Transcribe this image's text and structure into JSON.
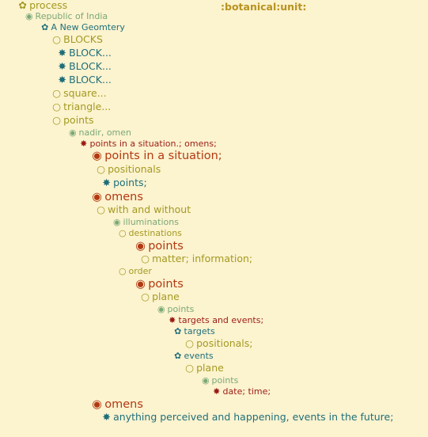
{
  "header": {
    "label": ":botanical:unit:"
  },
  "icons": {
    "flower-icon": "✿",
    "ring-icon": "◉",
    "circle-icon": "○",
    "asterisk-icon": "✸"
  },
  "colors": {
    "background": "#fcf3cf",
    "olive": "#a39a22",
    "sage": "#7aa877",
    "teal": "#1f6f7a",
    "red": "#9b1c14",
    "rust": "#b23a12",
    "header": "#b89320"
  },
  "tree": [
    {
      "label": "process",
      "marker": "flower-icon",
      "tone": "olive"
    },
    {
      "label": "Republic of India",
      "marker": "ring-icon",
      "tone": "sage"
    },
    {
      "label": "A New Geomtery",
      "marker": "flower-icon",
      "tone": "teal"
    },
    {
      "label": "BLOCKS",
      "marker": "circle-icon",
      "tone": "olive"
    },
    {
      "label": "BLOCK...",
      "marker": "asterisk-icon",
      "tone": "teal"
    },
    {
      "label": "BLOCK...",
      "marker": "asterisk-icon",
      "tone": "teal"
    },
    {
      "label": "BLOCK...",
      "marker": "asterisk-icon",
      "tone": "teal"
    },
    {
      "label": "square...",
      "marker": "circle-icon",
      "tone": "olive"
    },
    {
      "label": "triangle...",
      "marker": "circle-icon",
      "tone": "olive"
    },
    {
      "label": "points",
      "marker": "circle-icon",
      "tone": "olive"
    },
    {
      "label": "nadir, omen",
      "marker": "ring-icon",
      "tone": "sage"
    },
    {
      "label": "points in a situation.; omens;",
      "marker": "asterisk-icon",
      "tone": "red"
    },
    {
      "label": "points in a situation;",
      "marker": "ring-icon",
      "tone": "rust"
    },
    {
      "label": "positionals",
      "marker": "circle-icon",
      "tone": "olive"
    },
    {
      "label": "points;",
      "marker": "asterisk-icon",
      "tone": "teal"
    },
    {
      "label": "omens",
      "marker": "ring-icon",
      "tone": "rust"
    },
    {
      "label": "with and without",
      "marker": "circle-icon",
      "tone": "olive"
    },
    {
      "label": "illuminations",
      "marker": "ring-icon",
      "tone": "sage"
    },
    {
      "label": "destinations",
      "marker": "circle-icon",
      "tone": "olive"
    },
    {
      "label": "points",
      "marker": "ring-icon",
      "tone": "rust"
    },
    {
      "label": "matter; information;",
      "marker": "circle-icon",
      "tone": "olive"
    },
    {
      "label": "order",
      "marker": "circle-icon",
      "tone": "olive"
    },
    {
      "label": "points",
      "marker": "ring-icon",
      "tone": "rust"
    },
    {
      "label": "plane",
      "marker": "circle-icon",
      "tone": "olive"
    },
    {
      "label": "points",
      "marker": "ring-icon",
      "tone": "sage"
    },
    {
      "label": "targets and events;",
      "marker": "asterisk-icon",
      "tone": "red"
    },
    {
      "label": "targets",
      "marker": "flower-icon",
      "tone": "teal"
    },
    {
      "label": "positionals;",
      "marker": "circle-icon",
      "tone": "olive"
    },
    {
      "label": "events",
      "marker": "flower-icon",
      "tone": "teal"
    },
    {
      "label": "plane",
      "marker": "circle-icon",
      "tone": "olive"
    },
    {
      "label": "points",
      "marker": "ring-icon",
      "tone": "sage"
    },
    {
      "label": "date; time;",
      "marker": "asterisk-icon",
      "tone": "red"
    },
    {
      "label": "omens",
      "marker": "ring-icon",
      "tone": "rust"
    },
    {
      "label": "anything perceived and happening, events in the future;",
      "marker": "asterisk-icon",
      "tone": "teal"
    }
  ]
}
